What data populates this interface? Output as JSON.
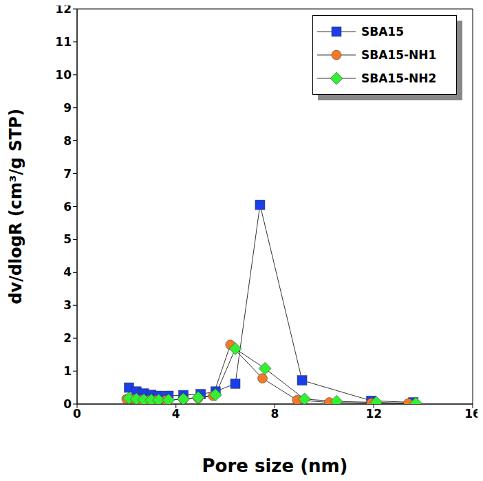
{
  "chart_data": {
    "type": "line",
    "x_label": "Pore size (nm)",
    "y_label": "dv/dlogR (cm³/g STP)",
    "xlim": [
      0,
      16
    ],
    "xticks": [
      0,
      4,
      8,
      12,
      16
    ],
    "ylim": [
      0,
      12
    ],
    "yticks": [
      0,
      1,
      2,
      3,
      4,
      5,
      6,
      7,
      8,
      9,
      10,
      11,
      12
    ],
    "grid": false,
    "legend": "upper right",
    "series": [
      {
        "name": "SBA15",
        "color": "#1a3ee8",
        "marker": "square",
        "x": [
          2.1,
          2.4,
          2.7,
          3.0,
          3.3,
          3.7,
          4.3,
          5.0,
          5.6,
          6.4,
          7.4,
          9.1,
          11.9,
          13.6
        ],
        "values": [
          0.5,
          0.38,
          0.32,
          0.28,
          0.25,
          0.25,
          0.27,
          0.3,
          0.38,
          0.62,
          6.05,
          0.72,
          0.1,
          0.05
        ]
      },
      {
        "name": "SBA15-NH1",
        "color": "#f07a28",
        "marker": "circle",
        "x": [
          2.0,
          2.3,
          2.6,
          2.9,
          3.2,
          3.6,
          4.3,
          4.9,
          5.5,
          6.2,
          7.5,
          8.9,
          10.2,
          11.9,
          13.4
        ],
        "values": [
          0.15,
          0.15,
          0.13,
          0.12,
          0.12,
          0.12,
          0.15,
          0.18,
          0.25,
          1.8,
          0.78,
          0.12,
          0.05,
          0.03,
          0.02
        ]
      },
      {
        "name": "SBA15-NH2",
        "color": "#33ee33",
        "marker": "diamond",
        "x": [
          2.1,
          2.4,
          2.7,
          3.0,
          3.3,
          3.7,
          4.3,
          4.9,
          5.6,
          6.4,
          7.6,
          9.2,
          10.5,
          12.1,
          13.7
        ],
        "values": [
          0.18,
          0.15,
          0.13,
          0.12,
          0.12,
          0.12,
          0.15,
          0.2,
          0.28,
          1.68,
          1.08,
          0.15,
          0.08,
          0.05,
          0.02
        ]
      }
    ]
  }
}
